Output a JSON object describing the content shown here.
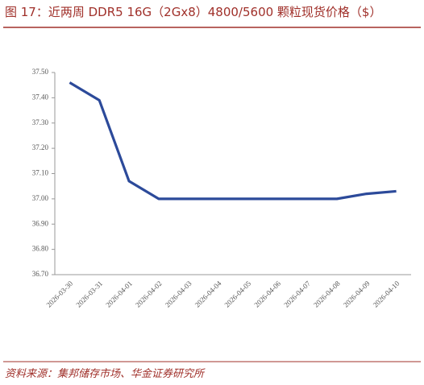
{
  "chart_data": {
    "type": "line",
    "title": "图 17：近两周 DDR5 16G（2Gx8）4800/5600 颗粒现货价格（$）",
    "source": "资料来源：集邦储存市场、华金证券研究所",
    "categories": [
      "2026-03-30",
      "2026-03-31",
      "2026-04-01",
      "2026-04-02",
      "2026-04-03",
      "2026-04-04",
      "2026-04-05",
      "2026-04-06",
      "2026-04-07",
      "2026-04-08",
      "2026-04-09",
      "2026-04-10"
    ],
    "series": [
      {
        "color": "#2c4a9a",
        "values": [
          37.46,
          37.39,
          37.07,
          37.0,
          37.0,
          37.0,
          37.0,
          37.0,
          37.0,
          37.0,
          37.02,
          37.03
        ]
      }
    ],
    "ylim": [
      36.7,
      37.5
    ],
    "yticks": [
      {
        "value": 36.7,
        "label": "36.70"
      },
      {
        "value": 36.8,
        "label": "36.80"
      },
      {
        "value": 36.9,
        "label": "36.90"
      },
      {
        "value": 37.0,
        "label": "37.00"
      },
      {
        "value": 37.1,
        "label": "37.10"
      },
      {
        "value": 37.2,
        "label": "37.20"
      },
      {
        "value": 37.3,
        "label": "37.30"
      },
      {
        "value": 37.4,
        "label": "37.40"
      },
      {
        "value": 37.5,
        "label": "37.50"
      }
    ],
    "grid": false
  }
}
